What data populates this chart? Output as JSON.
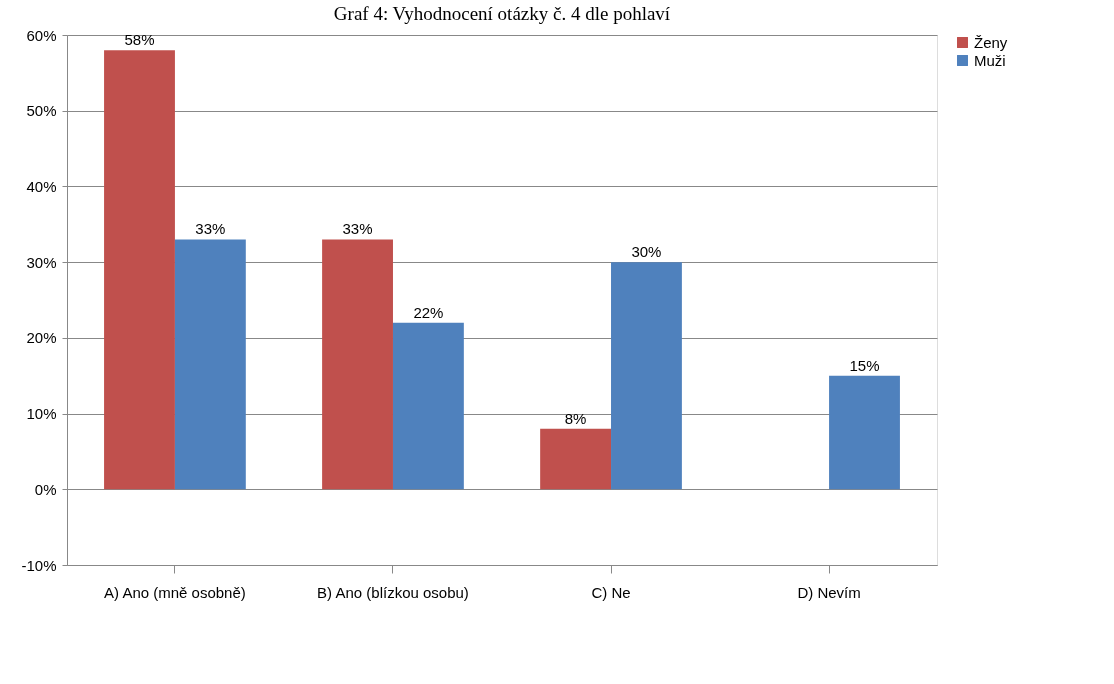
{
  "chart_data": {
    "type": "bar",
    "title": "Graf 4: Vyhodnocení otázky č. 4 dle pohlaví",
    "categories": [
      "A) Ano (mně osobně)",
      "B) Ano (blízkou osobu)",
      "C) Ne",
      "D) Nevím"
    ],
    "series": [
      {
        "name": "Ženy",
        "color": "#c0504d",
        "values": [
          58,
          33,
          8,
          null
        ],
        "value_labels": [
          "58%",
          "33%",
          "8%",
          null
        ]
      },
      {
        "name": "Muži",
        "color": "#4f81bd",
        "values": [
          33,
          22,
          30,
          15
        ],
        "value_labels": [
          "33%",
          "22%",
          "30%",
          "15%"
        ]
      }
    ],
    "ylim": [
      -10,
      60
    ],
    "yticks": [
      {
        "value": -10,
        "label": "-10%"
      },
      {
        "value": 0,
        "label": "0%"
      },
      {
        "value": 10,
        "label": "10%"
      },
      {
        "value": 20,
        "label": "20%"
      },
      {
        "value": 30,
        "label": "30%"
      },
      {
        "value": 40,
        "label": "40%"
      },
      {
        "value": 50,
        "label": "50%"
      },
      {
        "value": 60,
        "label": "60%"
      }
    ],
    "grid": "y",
    "legend": "right"
  }
}
